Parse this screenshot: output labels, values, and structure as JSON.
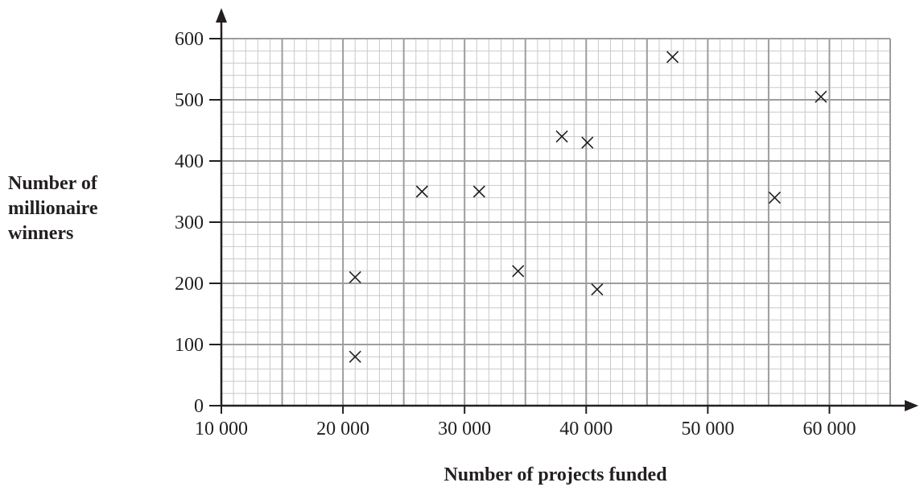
{
  "chart_data": {
    "type": "scatter",
    "xlabel": "Number of projects funded",
    "ylabel": [
      "Number of",
      "millionaire",
      "winners"
    ],
    "xlim": [
      10000,
      65000
    ],
    "ylim": [
      0,
      600
    ],
    "x_ticks": [
      10000,
      20000,
      30000,
      40000,
      50000,
      60000
    ],
    "x_tick_labels": [
      "10 000",
      "20 000",
      "30 000",
      "40 000",
      "50 000",
      "60 000"
    ],
    "y_ticks": [
      0,
      100,
      200,
      300,
      400,
      500,
      600
    ],
    "y_tick_labels": [
      "0",
      "100",
      "200",
      "300",
      "400",
      "500",
      "600"
    ],
    "grid": true,
    "marker": "x",
    "points": [
      {
        "x": 21000,
        "y": 80
      },
      {
        "x": 21000,
        "y": 210
      },
      {
        "x": 26500,
        "y": 350
      },
      {
        "x": 31200,
        "y": 350
      },
      {
        "x": 34400,
        "y": 220
      },
      {
        "x": 38000,
        "y": 440
      },
      {
        "x": 40100,
        "y": 430
      },
      {
        "x": 40900,
        "y": 190
      },
      {
        "x": 47100,
        "y": 570
      },
      {
        "x": 55500,
        "y": 340
      },
      {
        "x": 59300,
        "y": 505
      }
    ]
  }
}
